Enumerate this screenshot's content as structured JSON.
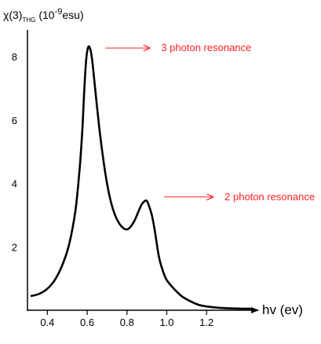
{
  "chart_data": {
    "type": "line",
    "ylabel": {
      "prefix": "χ(3)",
      "subscript": "THG",
      "unit_open": "(10",
      "exponent": "-9",
      "unit_close": "esu)"
    },
    "xlabel": "hv (ev)",
    "xlim": [
      0.3,
      1.42
    ],
    "ylim": [
      0,
      8.6
    ],
    "x_ticks": [
      0.4,
      0.6,
      0.8,
      1.0,
      1.2
    ],
    "x_tick_labels": [
      "0.4",
      "0.6",
      "0.8",
      "1.0",
      "1.2"
    ],
    "y_ticks": [
      2,
      4,
      6,
      8
    ],
    "y_tick_labels": [
      "2",
      "4",
      "6",
      "8"
    ],
    "grid": false,
    "series": [
      {
        "color": "#000000",
        "x": [
          0.32,
          0.36,
          0.4,
          0.44,
          0.48,
          0.51,
          0.54,
          0.56,
          0.575,
          0.585,
          0.595,
          0.605,
          0.615,
          0.625,
          0.64,
          0.66,
          0.68,
          0.7,
          0.72,
          0.74,
          0.76,
          0.78,
          0.8,
          0.82,
          0.84,
          0.86,
          0.875,
          0.89,
          0.9,
          0.91,
          0.925,
          0.94,
          0.96,
          0.98,
          1.0,
          1.04,
          1.08,
          1.12,
          1.16,
          1.2,
          1.26,
          1.32,
          1.38,
          1.42
        ],
        "y": [
          0.45,
          0.52,
          0.68,
          0.98,
          1.5,
          2.1,
          3.1,
          4.3,
          5.6,
          6.9,
          7.9,
          8.3,
          8.25,
          7.9,
          7.0,
          5.8,
          4.8,
          4.0,
          3.4,
          3.0,
          2.75,
          2.6,
          2.55,
          2.65,
          2.85,
          3.15,
          3.35,
          3.45,
          3.45,
          3.3,
          3.0,
          2.5,
          1.7,
          1.25,
          0.95,
          0.65,
          0.42,
          0.28,
          0.17,
          0.12,
          0.08,
          0.06,
          0.05,
          0.05
        ]
      }
    ],
    "annotations": [
      {
        "text": "3 photon resonance",
        "x": 0.605,
        "y": 8.25,
        "color": "#ff2020"
      },
      {
        "text": "2 photon resonance",
        "x": 0.9,
        "y": 3.55,
        "color": "#ff2020"
      }
    ]
  }
}
